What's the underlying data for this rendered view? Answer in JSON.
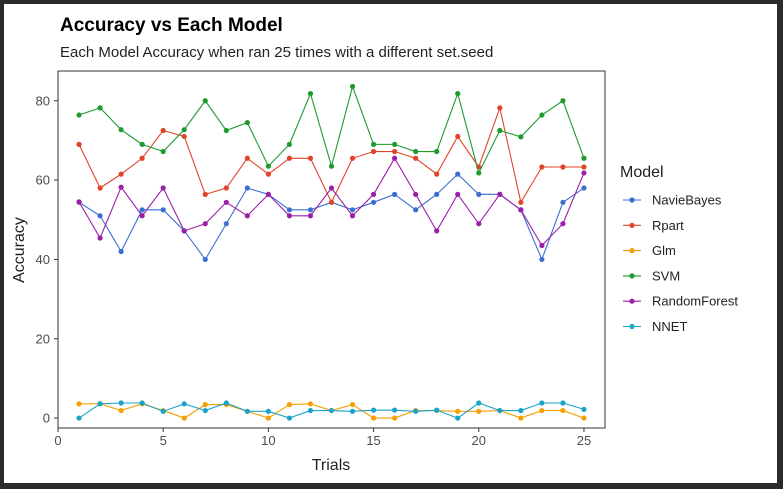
{
  "chart_data": {
    "type": "line",
    "title": "Accuracy vs Each Model",
    "subtitle": "Each Model Accuracy when ran 25 times with a different set.seed",
    "xlabel": "Trials",
    "ylabel": "Accuracy",
    "xlim": [
      0,
      26
    ],
    "ylim": [
      -2.5,
      87.5
    ],
    "x_ticks": [
      0,
      5,
      10,
      15,
      20,
      25
    ],
    "y_ticks": [
      0,
      20,
      40,
      60,
      80
    ],
    "grid": false,
    "legend": {
      "title": "Model",
      "position": "right"
    },
    "x": [
      1,
      2,
      3,
      4,
      5,
      6,
      7,
      8,
      9,
      10,
      11,
      12,
      13,
      14,
      15,
      16,
      17,
      18,
      19,
      20,
      21,
      22,
      23,
      24,
      25
    ],
    "series": [
      {
        "name": "NavieBayes",
        "color": "#3a6fd0",
        "values": [
          54.4,
          51,
          42,
          52.5,
          52.5,
          47.2,
          40,
          49,
          58,
          56.4,
          52.5,
          52.5,
          54.4,
          52.5,
          54.4,
          56.4,
          52.5,
          56.4,
          61.5,
          56.4,
          56.4,
          52.5,
          40,
          54.4,
          58
        ]
      },
      {
        "name": "Rpart",
        "color": "#e0452a",
        "values": [
          69,
          58,
          61.5,
          65.5,
          72.5,
          71,
          56.4,
          58,
          65.5,
          61.5,
          65.5,
          65.5,
          54.4,
          65.5,
          67.2,
          67.2,
          65.5,
          61.5,
          71,
          63.3,
          78.2,
          54.4,
          63.3,
          63.3,
          63.3
        ]
      },
      {
        "name": "Glm",
        "color": "#f5a000",
        "values": [
          3.6,
          3.6,
          1.9,
          3.6,
          1.9,
          0,
          3.4,
          3.4,
          1.7,
          0,
          3.4,
          3.6,
          1.9,
          3.4,
          0,
          0,
          1.9,
          1.9,
          1.7,
          1.7,
          1.9,
          0,
          1.9,
          1.9,
          0
        ]
      },
      {
        "name": "SVM",
        "color": "#1e9a2e",
        "values": [
          76.4,
          78.2,
          72.7,
          69,
          67.2,
          72.7,
          80,
          72.5,
          74.5,
          63.5,
          69,
          81.8,
          63.5,
          83.6,
          69,
          69,
          67.2,
          67.2,
          81.8,
          61.8,
          72.5,
          70.9,
          76.4,
          80,
          65.5
        ]
      },
      {
        "name": "RandomForest",
        "color": "#9b1fa8",
        "values": [
          54.5,
          45.4,
          58.2,
          51,
          58,
          47.2,
          49,
          54.4,
          51,
          56.4,
          51,
          51,
          58,
          51,
          56.4,
          65.5,
          56.4,
          47.2,
          56.4,
          49,
          56.4,
          52.5,
          43.5,
          49,
          61.8
        ]
      },
      {
        "name": "NNET",
        "color": "#1aa3c8",
        "values": [
          0,
          3.6,
          3.8,
          3.8,
          1.7,
          3.6,
          1.9,
          3.8,
          1.7,
          1.7,
          0,
          1.9,
          1.9,
          1.7,
          2,
          2,
          1.7,
          2,
          0,
          3.8,
          1.9,
          1.9,
          3.8,
          3.8,
          2.2
        ]
      }
    ]
  }
}
